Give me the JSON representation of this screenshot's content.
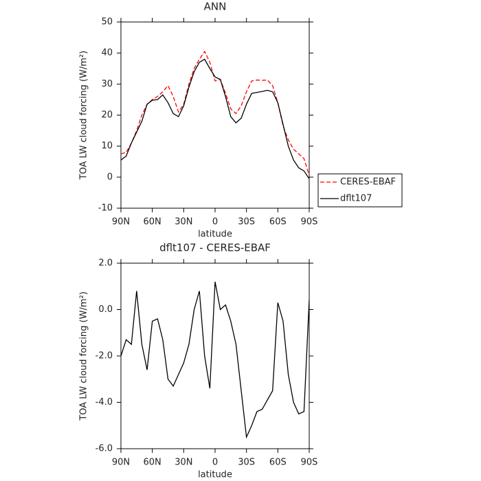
{
  "chart_data": [
    {
      "type": "line",
      "title": "ANN",
      "x_label": "latitude",
      "y_label": "TOA LW cloud forcing (W/m²)",
      "x": [
        90,
        85,
        80,
        75,
        70,
        65,
        60,
        55,
        50,
        45,
        40,
        35,
        30,
        25,
        20,
        15,
        10,
        5,
        0,
        -5,
        -10,
        -15,
        -20,
        -25,
        -30,
        -35,
        -40,
        -45,
        -50,
        -55,
        -60,
        -65,
        -70,
        -75,
        -80,
        -85,
        -90
      ],
      "series": [
        {
          "name": "CERES-EBAF",
          "color": "#ff0000",
          "style": "dashed",
          "values": [
            7.5,
            8,
            11,
            15,
            20,
            23.5,
            25,
            26,
            27.5,
            29.5,
            26,
            21,
            23.5,
            30,
            35,
            38,
            40.5,
            37,
            31,
            31.5,
            27,
            22,
            20.5,
            23,
            27.5,
            31,
            31.3,
            31.2,
            31.3,
            29.5,
            24,
            16.5,
            12,
            9,
            7.5,
            6,
            0.5
          ]
        },
        {
          "name": "dflt107",
          "color": "#000000",
          "style": "solid",
          "values": [
            5.5,
            6.8,
            11,
            14.5,
            18,
            23.5,
            24.8,
            25,
            26.5,
            24,
            20.5,
            19.5,
            23,
            29,
            34,
            37,
            38,
            35,
            32.3,
            31.5,
            26,
            19.5,
            17.5,
            19,
            23.5,
            27,
            27.3,
            27.6,
            28,
            27.5,
            24,
            17,
            10,
            5.5,
            3,
            2,
            -0.5
          ]
        }
      ],
      "xlim": [
        90,
        -90
      ],
      "xticks": [
        {
          "value": 90,
          "label": "90N"
        },
        {
          "value": 60,
          "label": "60N"
        },
        {
          "value": 30,
          "label": "30N"
        },
        0,
        {
          "value": -30,
          "label": "30S"
        },
        {
          "value": -60,
          "label": "60S"
        },
        {
          "value": -90,
          "label": "90S"
        }
      ],
      "ylim": [
        -10,
        50
      ],
      "yticks": [
        -10,
        0,
        10,
        20,
        30,
        40,
        50
      ],
      "legend": "outside-right"
    },
    {
      "type": "line",
      "title": "dflt107 - CERES-EBAF",
      "x_label": "latitude",
      "y_label": "TOA LW cloud forcing (W/m²)",
      "x": [
        90,
        85,
        80,
        75,
        70,
        65,
        60,
        55,
        50,
        45,
        40,
        35,
        30,
        25,
        20,
        15,
        10,
        5,
        0,
        -5,
        -10,
        -15,
        -20,
        -25,
        -30,
        -35,
        -40,
        -45,
        -50,
        -55,
        -60,
        -65,
        -70,
        -75,
        -80,
        -85,
        -90
      ],
      "series": [
        {
          "color": "#000000",
          "style": "solid",
          "values": [
            -2,
            -1.3,
            -1.5,
            0.8,
            -1.5,
            -2.6,
            -0.5,
            -0.4,
            -1.3,
            -3,
            -3.3,
            -2.8,
            -2.3,
            -1.5,
            0,
            0.8,
            -2,
            -3.4,
            1.2,
            0,
            0.2,
            -0.5,
            -1.5,
            -3.5,
            -5.5,
            -5,
            -4.4,
            -4.3,
            -3.9,
            -3.5,
            0.3,
            -0.5,
            -2.8,
            -4,
            -4.5,
            -4.4,
            0.4
          ]
        }
      ],
      "xlim": [
        90,
        -90
      ],
      "xticks": [
        {
          "value": 90,
          "label": "90N"
        },
        {
          "value": 60,
          "label": "60N"
        },
        {
          "value": 30,
          "label": "30N"
        },
        0,
        {
          "value": -30,
          "label": "30S"
        },
        {
          "value": -60,
          "label": "60S"
        },
        {
          "value": -90,
          "label": "90S"
        }
      ],
      "ylim": [
        -6,
        2
      ],
      "yticks": [
        {
          "value": -6,
          "label": "-6.0"
        },
        {
          "value": -4,
          "label": "-4.0"
        },
        {
          "value": -2,
          "label": "-2.0"
        },
        {
          "value": 0,
          "label": "0.0"
        },
        {
          "value": 2,
          "label": "2.0"
        }
      ]
    }
  ]
}
